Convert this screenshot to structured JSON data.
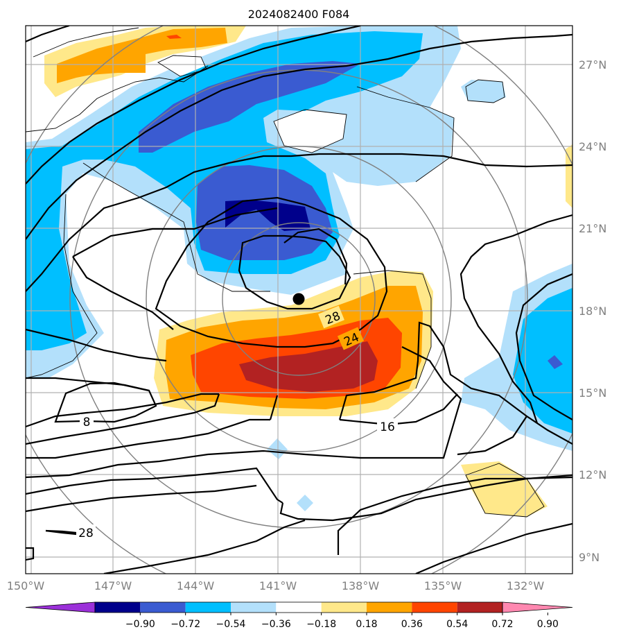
{
  "title": "2024082400 F084",
  "longitude_labels": [
    "150°W",
    "147°W",
    "144°W",
    "141°W",
    "138°W",
    "135°W",
    "132°W"
  ],
  "latitude_labels": [
    "27°N",
    "24°N",
    "21°N",
    "18°N",
    "15°N",
    "12°N",
    "9°N"
  ],
  "colorbar": {
    "labels": [
      "−0.90",
      "−0.72",
      "−0.54",
      "−0.36",
      "−0.18",
      "0.18",
      "0.36",
      "0.54",
      "0.72",
      "0.90"
    ],
    "colors": [
      "#9b30d9",
      "#00008b",
      "#3a5bd1",
      "#00bfff",
      "#b3e0fb",
      "#ffffff",
      "#ffe88a",
      "#ffa500",
      "#ff4500",
      "#b22222",
      "#ff88b0"
    ]
  },
  "contour_labels": [
    "28",
    "24",
    "16",
    "8",
    "28"
  ],
  "fill_colors": {
    "light_blue": "#b3e0fb",
    "blue": "#00bfff",
    "royal": "#3a5bd1",
    "navy": "#00008b",
    "yellow": "#ffe88a",
    "orange": "#ffa500",
    "red_orange": "#ff4500",
    "dark_red": "#b22222"
  },
  "storm_center_marker": "black-dot"
}
